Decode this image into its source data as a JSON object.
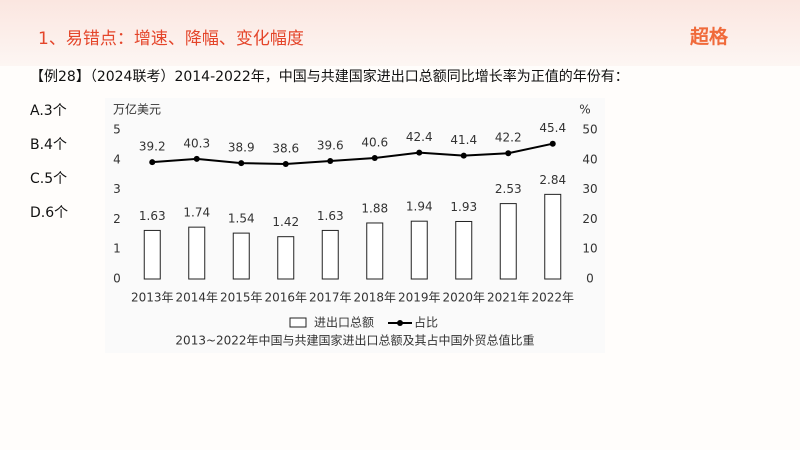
{
  "header": {
    "title": "1、易错点：增速、降幅、变化幅度",
    "brand": "超格"
  },
  "question": "【例28】（2024联考）2014-2022年，中国与共建国家进出口总额同比增长率为正值的年份有：",
  "options": [
    "A.3个",
    "B.4个",
    "C.5个",
    "D.6个"
  ],
  "chart_data": {
    "type": "bar-line",
    "title": "2013~2022年中国与共建国家进出口总额及其占中国外贸总值比重",
    "y_label": "万亿美元",
    "y2_label": "%",
    "categories": [
      "2013年",
      "2014年",
      "2015年",
      "2016年",
      "2017年",
      "2018年",
      "2019年",
      "2020年",
      "2021年",
      "2022年"
    ],
    "series": [
      {
        "name": "进出口总额",
        "type": "bar",
        "color": "#ffffff",
        "values": [
          1.63,
          1.74,
          1.54,
          1.42,
          1.63,
          1.88,
          1.94,
          1.93,
          2.53,
          2.84
        ]
      },
      {
        "name": "占比",
        "type": "line",
        "axis": "y2",
        "color": "#000000",
        "values": [
          39.2,
          40.3,
          38.9,
          38.6,
          39.6,
          40.6,
          42.4,
          41.4,
          42.2,
          45.4
        ]
      }
    ],
    "ylim": [
      0,
      5
    ],
    "yticks": [
      0,
      1,
      2,
      3,
      4,
      5
    ],
    "y2lim": [
      0,
      50
    ],
    "y2ticks": [
      0,
      10,
      20,
      30,
      40,
      50
    ],
    "legend": "bottom"
  }
}
